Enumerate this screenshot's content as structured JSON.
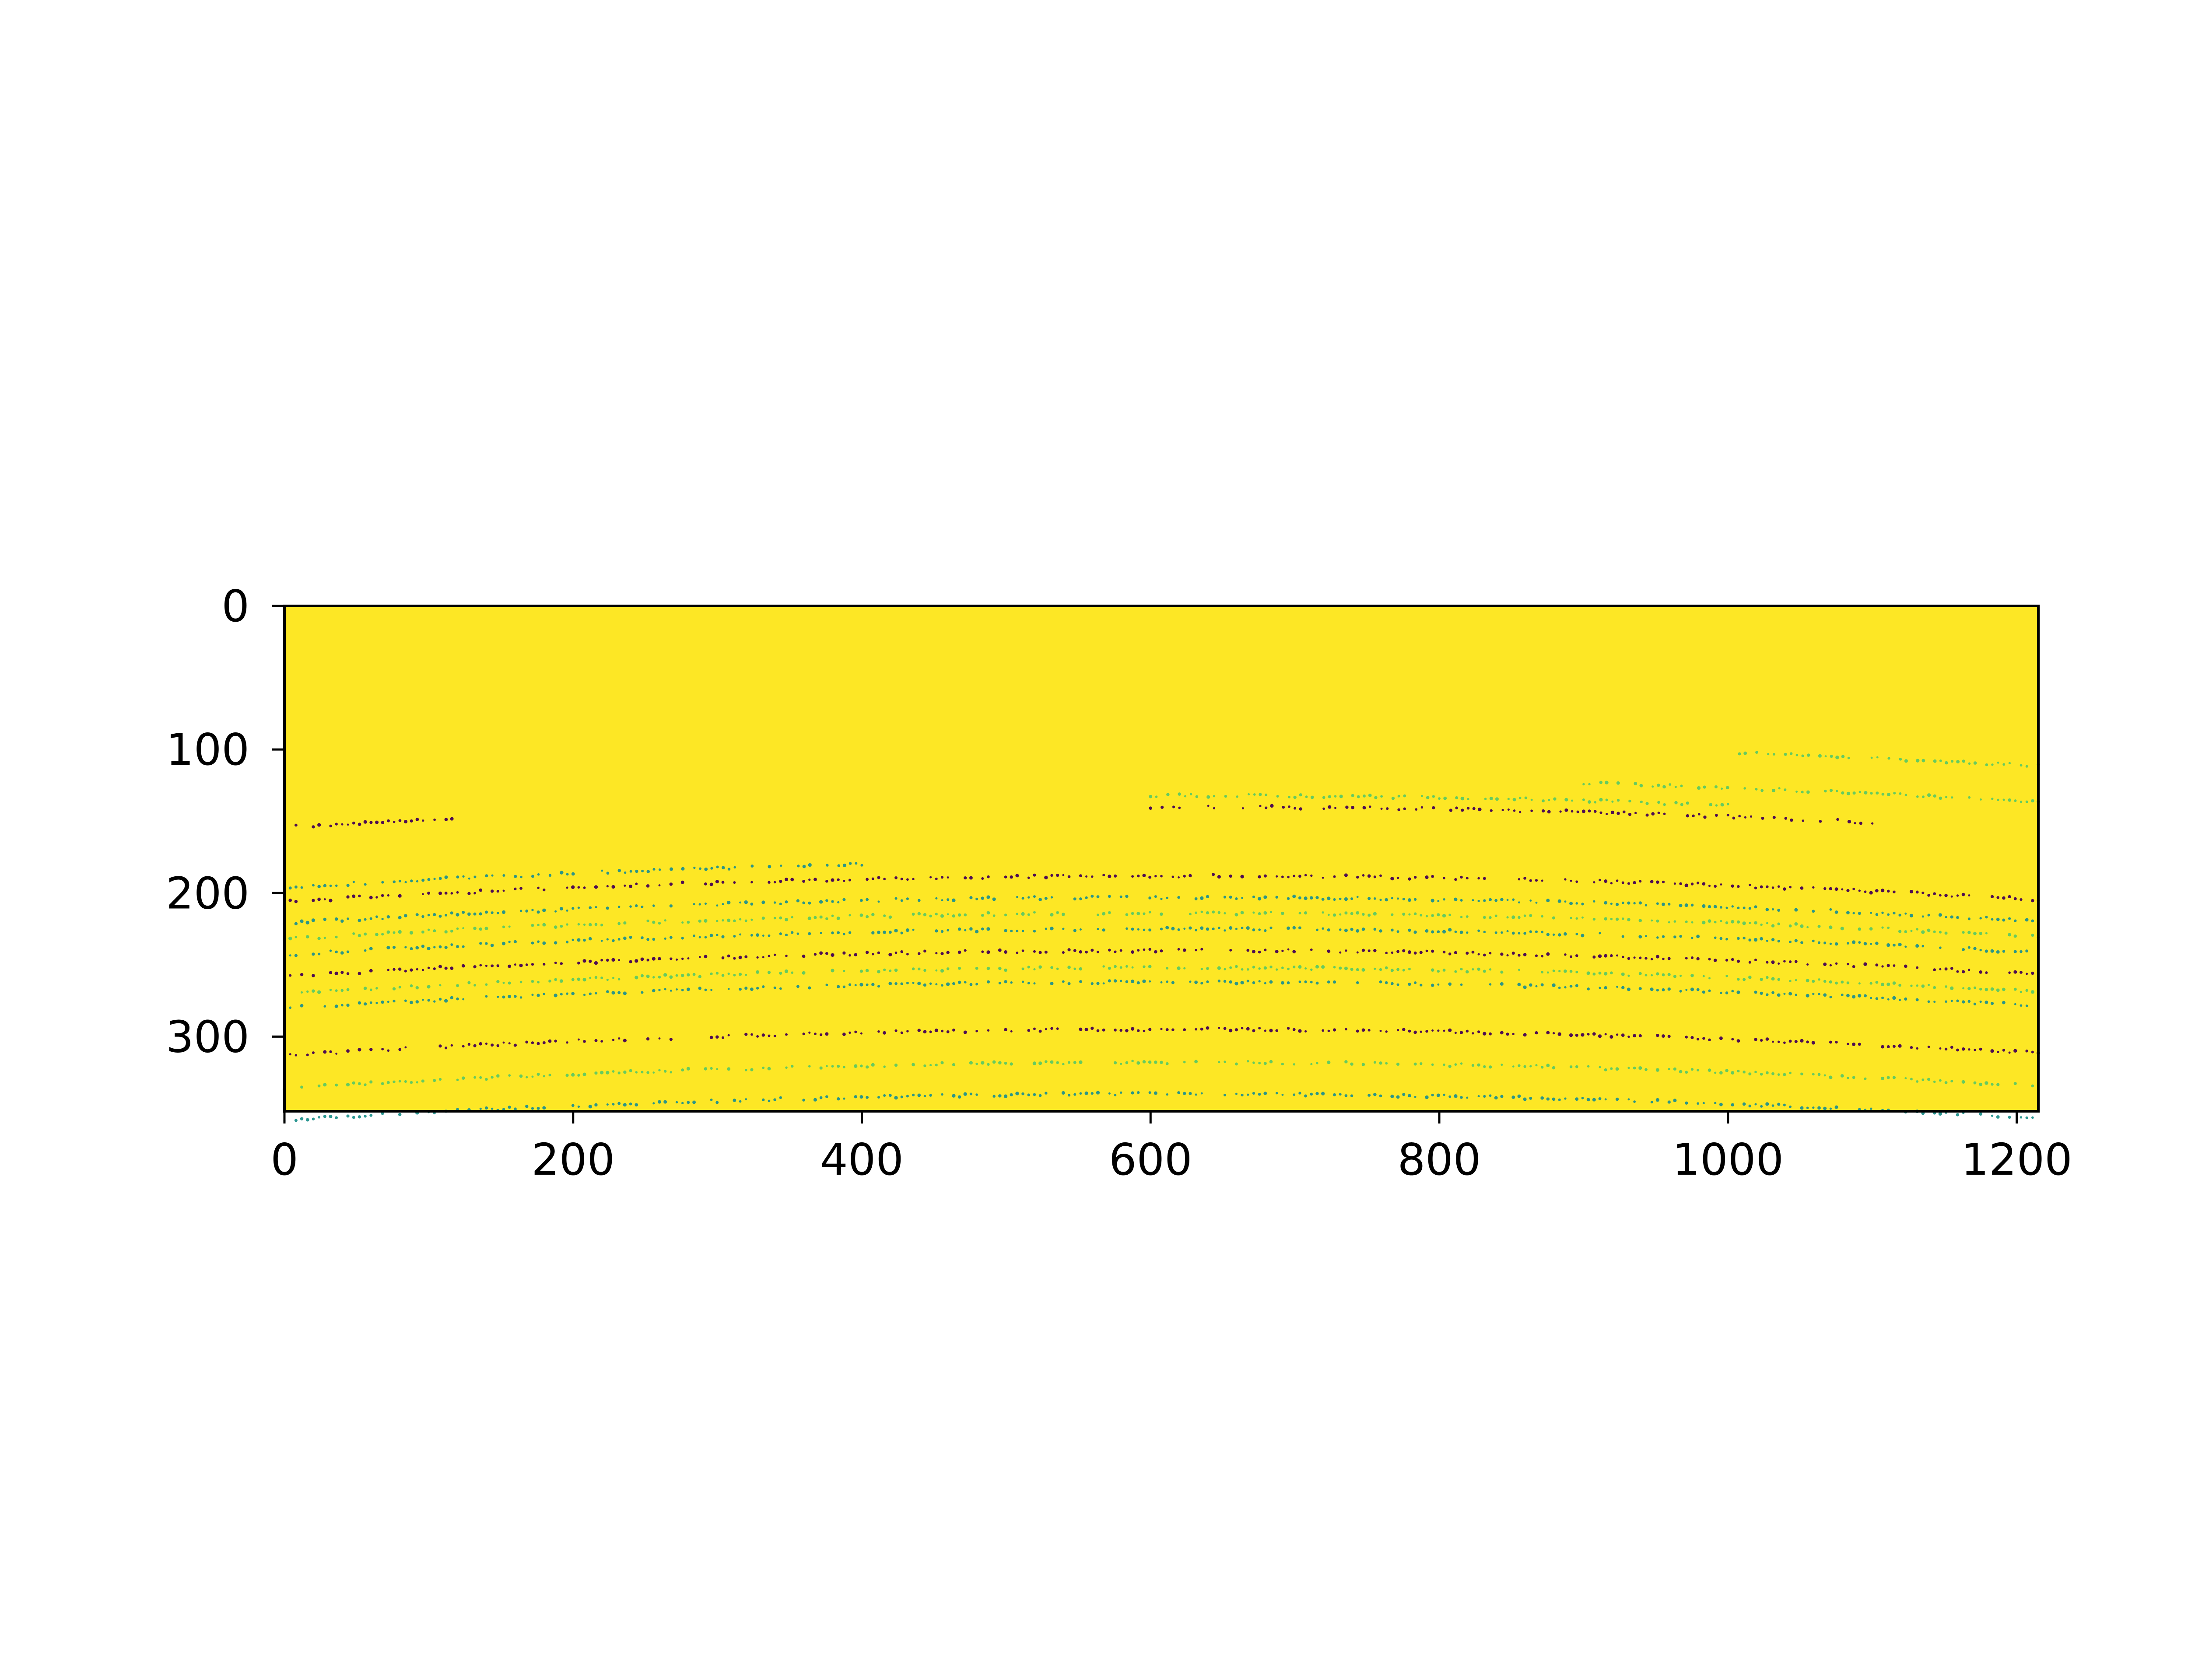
{
  "chart_data": {
    "type": "heatmap",
    "title": "",
    "xlabel": "",
    "ylabel": "",
    "xlim": [
      0,
      1215
    ],
    "ylim": [
      352,
      0
    ],
    "x_ticks": [
      0,
      200,
      400,
      600,
      800,
      1000,
      1200
    ],
    "x_tick_labels": [
      "0",
      "200",
      "400",
      "600",
      "800",
      "1000",
      "1200"
    ],
    "y_ticks": [
      0,
      100,
      200,
      300
    ],
    "y_tick_labels": [
      "0",
      "100",
      "200",
      "300"
    ],
    "grid": false,
    "colormap": "viridis",
    "background_value": "max",
    "background_color": "#fde725",
    "point_colors": [
      "#440154",
      "#21918c",
      "#5ec962"
    ],
    "description_pattern": "sparse projected depth points along curved scan lines",
    "scan_lines": [
      {
        "x": [
          0,
          120
        ],
        "y": [
          136,
          136
        ],
        "color_index": 0
      },
      {
        "x": [
          0,
          400
        ],
        "y": [
          178,
          178
        ],
        "color_index": 1
      },
      {
        "x": [
          0,
          1215
        ],
        "y": [
          188,
          188
        ],
        "color_index": 0
      },
      {
        "x": [
          0,
          1215
        ],
        "y": [
          203,
          203
        ],
        "color_index": 1
      },
      {
        "x": [
          0,
          1215
        ],
        "y": [
          214,
          214
        ],
        "color_index": 2
      },
      {
        "x": [
          0,
          1215
        ],
        "y": [
          225,
          225
        ],
        "color_index": 1
      },
      {
        "x": [
          0,
          1215
        ],
        "y": [
          240,
          240
        ],
        "color_index": 0
      },
      {
        "x": [
          0,
          1215
        ],
        "y": [
          252,
          252
        ],
        "color_index": 2
      },
      {
        "x": [
          600,
          1100
        ],
        "y": [
          140,
          140
        ],
        "color_index": 0
      },
      {
        "x": [
          600,
          1000
        ],
        "y": [
          132,
          132
        ],
        "color_index": 2
      },
      {
        "x": [
          900,
          1215
        ],
        "y": [
          120,
          120
        ],
        "color_index": 2
      },
      {
        "x": [
          1000,
          1215
        ],
        "y": [
          95,
          95
        ],
        "color_index": 2
      },
      {
        "x": [
          0,
          1215
        ],
        "y": [
          262,
          262
        ],
        "color_index": 1
      },
      {
        "x": [
          0,
          1215
        ],
        "y": [
          295,
          295
        ],
        "color_index": 0
      },
      {
        "x": [
          0,
          1215
        ],
        "y": [
          318,
          318
        ],
        "color_index": 2
      },
      {
        "x": [
          0,
          1215
        ],
        "y": [
          340,
          340
        ],
        "color_index": 1
      }
    ]
  }
}
